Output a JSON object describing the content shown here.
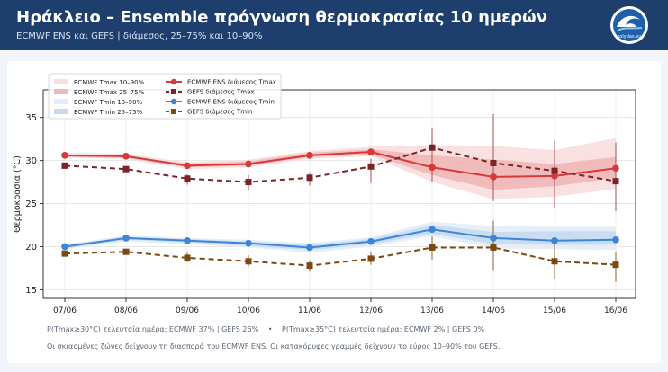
{
  "header": {
    "title": "Ηράκλειο – Ensemble πρόγνωση θερμοκρασίας 10 ημερών",
    "subtitle": "ECMWF ENS και GEFS | διάμεσος, 25–75% και 10–90%",
    "logo_text": "kolydas.eu"
  },
  "footer": {
    "line1_part1": "P(Tmax≥30°C) τελευταία ημέρα: ECMWF 37% | GEFS 26%",
    "separator": "•",
    "line1_part2": "P(Tmax≥35°C) τελευταία ημέρα: ECMWF 2% | GEFS 0%",
    "line2": "Οι σκιασμένες ζώνες δείχνουν τη διασπορά του ECMWF ENS. Οι κατακόρυφες γραμμές δείχνουν το εύρος 10–90% του GEFS."
  },
  "chart_data": {
    "type": "line",
    "categories": [
      "07/06",
      "08/06",
      "09/06",
      "10/06",
      "11/06",
      "12/06",
      "13/06",
      "14/06",
      "15/06",
      "16/06"
    ],
    "ylabel": "Θερμοκρασία (°C)",
    "xlabel": "",
    "ylim": [
      14,
      38.2
    ],
    "yticks": [
      15,
      20,
      25,
      30,
      35
    ],
    "grid": true,
    "legend_position": "top-left",
    "colors": {
      "ecmwf_tmax": "#d6393a",
      "gefs_tmax": "#7b2426",
      "ecmwf_tmin": "#3d85d6",
      "gefs_tmin": "#7b4a10",
      "band_tmax_outer": "#f9dede",
      "band_tmax_inner": "#f0b7b8",
      "band_tmin_outer": "#e3ecf8",
      "band_tmin_inner": "#c5d9f1"
    },
    "bands": [
      {
        "name": "ECMWF Tmax 10–90%",
        "kind": "tmax_outer",
        "low": [
          30.3,
          30.2,
          29.0,
          29.2,
          30.2,
          30.5,
          27.5,
          25.5,
          25.8,
          26.7
        ],
        "high": [
          30.9,
          30.8,
          29.8,
          30.1,
          31.1,
          31.6,
          31.8,
          31.7,
          31.2,
          32.6
        ]
      },
      {
        "name": "ECMWF Tmax 25–75%",
        "kind": "tmax_inner",
        "low": [
          30.4,
          30.3,
          29.2,
          29.4,
          30.4,
          30.7,
          28.3,
          26.6,
          27.0,
          28.0
        ],
        "high": [
          30.7,
          30.6,
          29.6,
          29.9,
          30.9,
          31.3,
          30.6,
          30.1,
          29.6,
          30.4
        ]
      },
      {
        "name": "ECMWF Tmin 10–90%",
        "kind": "tmin_outer",
        "low": [
          19.7,
          20.6,
          20.3,
          19.9,
          19.3,
          20.0,
          21.2,
          19.8,
          19.7,
          19.6
        ],
        "high": [
          20.3,
          21.3,
          21.0,
          20.8,
          20.4,
          21.1,
          22.9,
          22.4,
          22.3,
          22.3
        ]
      },
      {
        "name": "ECMWF Tmin 25–75%",
        "kind": "tmin_inner",
        "low": [
          19.8,
          20.8,
          20.5,
          20.1,
          19.6,
          20.3,
          21.5,
          20.3,
          20.2,
          20.2
        ],
        "high": [
          20.2,
          21.1,
          20.9,
          20.6,
          20.2,
          20.9,
          22.5,
          21.7,
          21.8,
          21.8
        ]
      }
    ],
    "series": [
      {
        "name": "ECMWF ENS διάμεσος Tmax",
        "kind": "ecmwf_tmax",
        "values": [
          30.6,
          30.5,
          29.4,
          29.6,
          30.6,
          31.0,
          29.2,
          28.1,
          28.2,
          29.1
        ]
      },
      {
        "name": "GEFS διάμεσος Tmax",
        "kind": "gefs_tmax",
        "values": [
          29.4,
          29.0,
          27.9,
          27.5,
          28.0,
          29.3,
          31.5,
          29.7,
          28.8,
          27.6
        ],
        "range_low": [
          null,
          null,
          27.2,
          26.5,
          27.1,
          27.4,
          27.6,
          25.3,
          24.5,
          24.1
        ],
        "range_high": [
          null,
          null,
          28.4,
          28.3,
          28.6,
          30.2,
          33.7,
          35.4,
          32.3,
          32.1
        ]
      },
      {
        "name": "ECMWF ENS διάμεσος Tmin",
        "kind": "ecmwf_tmin",
        "values": [
          20.0,
          21.0,
          20.7,
          20.4,
          19.9,
          20.6,
          22.0,
          21.0,
          20.7,
          20.8
        ]
      },
      {
        "name": "GEFS διάμεσος Tmin",
        "kind": "gefs_tmin",
        "values": [
          19.2,
          19.4,
          18.7,
          18.3,
          17.8,
          18.6,
          19.9,
          19.9,
          18.3,
          17.9
        ],
        "range_low": [
          null,
          null,
          18.2,
          17.7,
          17.1,
          17.9,
          18.5,
          17.2,
          16.2,
          15.9
        ],
        "range_high": [
          null,
          null,
          19.4,
          19.0,
          18.4,
          19.4,
          21.2,
          23.0,
          20.5,
          19.4
        ]
      }
    ]
  }
}
